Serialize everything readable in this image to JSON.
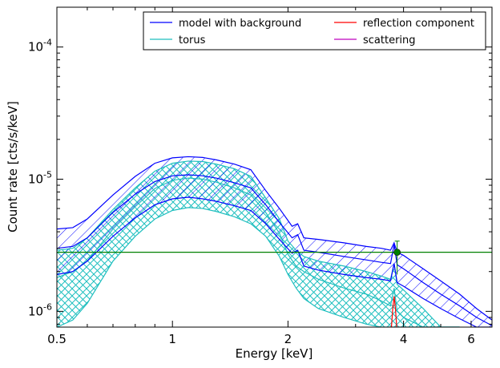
{
  "chart_data": {
    "type": "line",
    "xlabel": "Energy [keV]",
    "ylabel": "Count rate [cts/s/keV]",
    "xscale": "log",
    "yscale": "log",
    "xlim": [
      0.5,
      6.8
    ],
    "ylim": [
      7.6e-07,
      0.0002
    ],
    "x_ticks": [
      {
        "value": 0.5,
        "label": "0.5"
      },
      {
        "value": 1,
        "label": "1"
      },
      {
        "value": 2,
        "label": "2"
      },
      {
        "value": 4,
        "label": "4"
      },
      {
        "value": 6,
        "label": "6"
      }
    ],
    "y_ticks": [
      {
        "value": 1e-06,
        "mantissa": "10",
        "exp": "-6"
      },
      {
        "value": 1e-05,
        "mantissa": "10",
        "exp": "-5"
      },
      {
        "value": 0.0001,
        "mantissa": "10",
        "exp": "-4"
      }
    ],
    "grid": false,
    "legend_position": "top-right",
    "legend": [
      {
        "name": "model with background",
        "color": "#0000ff"
      },
      {
        "name": "torus",
        "color": "#1fbfbf"
      },
      {
        "name": "reflection component",
        "color": "#ff0000"
      },
      {
        "name": "scattering",
        "color": "#bf00bf"
      }
    ],
    "series": [
      {
        "name": "model with background",
        "color": "#0000ff",
        "x": [
          0.5,
          0.55,
          0.6,
          0.7,
          0.8,
          0.9,
          1.0,
          1.1,
          1.2,
          1.3,
          1.45,
          1.6,
          1.75,
          1.9,
          2.05,
          2.12,
          2.2,
          2.4,
          2.8,
          3.2,
          3.5,
          3.7,
          3.78,
          3.85,
          4.0,
          4.5,
          5.0,
          5.6,
          6.2,
          6.8
        ],
        "upper": [
          4.2e-06,
          4.3e-06,
          5e-06,
          7.6e-06,
          1.05e-05,
          1.32e-05,
          1.45e-05,
          1.48e-05,
          1.46e-05,
          1.4e-05,
          1.3e-05,
          1.18e-05,
          8.2e-06,
          6e-06,
          4.4e-06,
          4.6e-06,
          3.6e-06,
          3.5e-06,
          3.3e-06,
          3.1e-06,
          3e-06,
          2.9e-06,
          3.3e-06,
          2.8e-06,
          2.65e-06,
          2.1e-06,
          1.7e-06,
          1.35e-06,
          1.05e-06,
          8.6e-07
        ],
        "median": [
          3e-06,
          3.1e-06,
          3.6e-06,
          5.6e-06,
          7.7e-06,
          9.6e-06,
          1.06e-05,
          1.08e-05,
          1.06e-05,
          1.02e-05,
          9.4e-06,
          8.6e-06,
          6.4e-06,
          4.7e-06,
          3.6e-06,
          3.8e-06,
          2.9e-06,
          2.8e-06,
          2.6e-06,
          2.45e-06,
          2.35e-06,
          2.3e-06,
          3.2e-06,
          2.25e-06,
          2.1e-06,
          1.65e-06,
          1.35e-06,
          1.1e-06,
          9e-07,
          7.8e-07
        ],
        "lower": [
          1.9e-06,
          2e-06,
          2.4e-06,
          3.7e-06,
          5.1e-06,
          6.4e-06,
          7.1e-06,
          7.3e-06,
          7.1e-06,
          6.8e-06,
          6.3e-06,
          5.8e-06,
          4.6e-06,
          3.5e-06,
          2.75e-06,
          2.9e-06,
          2.2e-06,
          2.05e-06,
          1.9e-06,
          1.8e-06,
          1.75e-06,
          1.7e-06,
          2.3e-06,
          1.65e-06,
          1.55e-06,
          1.25e-06,
          1.05e-06,
          8.8e-07,
          7.6e-07,
          7.6e-07
        ]
      },
      {
        "name": "torus",
        "color": "#1fbfbf",
        "x": [
          0.5,
          0.55,
          0.6,
          0.7,
          0.8,
          0.9,
          1.0,
          1.1,
          1.2,
          1.3,
          1.45,
          1.6,
          1.75,
          1.9,
          2.0,
          2.1,
          2.2,
          2.4,
          2.8,
          3.2,
          3.5,
          3.7,
          3.78,
          3.85,
          4.0,
          4.5,
          5.0,
          5.6
        ],
        "upper": [
          2.9e-06,
          3e-06,
          3.6e-06,
          5.9e-06,
          8.6e-06,
          1.15e-05,
          1.32e-05,
          1.37e-05,
          1.36e-05,
          1.3e-05,
          1.2e-05,
          1.05e-05,
          7.2e-06,
          5e-06,
          3.4e-06,
          2.9e-06,
          2.6e-06,
          2.4e-06,
          2.2e-06,
          2e-06,
          1.85e-06,
          1.75e-06,
          2.3e-06,
          1.6e-06,
          1.45e-06,
          1.05e-06,
          7.6e-07,
          7.6e-07
        ],
        "median": [
          1.8e-06,
          2e-06,
          2.4e-06,
          4.2e-06,
          6.2e-06,
          8.5e-06,
          9.8e-06,
          1.02e-05,
          1e-05,
          9.5e-06,
          8.6e-06,
          7.6e-06,
          5.6e-06,
          3.9e-06,
          2.7e-06,
          2.2e-06,
          2e-06,
          1.75e-06,
          1.5e-06,
          1.35e-06,
          1.2e-06,
          1.1e-06,
          1.5e-06,
          1e-06,
          9e-07,
          7.6e-07,
          7.6e-07,
          7.6e-07
        ],
        "lower": [
          7.6e-07,
          8.6e-07,
          1.15e-06,
          2.4e-06,
          3.7e-06,
          5e-06,
          5.8e-06,
          6.1e-06,
          6e-06,
          5.7e-06,
          5.2e-06,
          4.6e-06,
          3.7e-06,
          2.6e-06,
          1.9e-06,
          1.5e-06,
          1.25e-06,
          1.05e-06,
          9e-07,
          8e-07,
          7.6e-07,
          7.6e-07,
          7.6e-07,
          7.6e-07,
          7.6e-07,
          7.6e-07,
          7.6e-07,
          7.6e-07
        ]
      },
      {
        "name": "reflection component",
        "color": "#ff0000",
        "x": [
          3.72,
          3.75,
          3.78,
          3.81,
          3.84
        ],
        "median": [
          7.6e-07,
          1.05e-06,
          1.3e-06,
          1.05e-06,
          7.6e-07
        ]
      },
      {
        "name": "scattering",
        "color": "#bf00bf",
        "x": [],
        "median": []
      }
    ],
    "reference_line": {
      "color": "#008000",
      "y": 2.8e-06
    },
    "data_point": {
      "color": "#008000",
      "x": 3.85,
      "y": 2.8e-06,
      "yerr_low": 1.9e-06,
      "yerr_high": 3.4e-06
    }
  }
}
